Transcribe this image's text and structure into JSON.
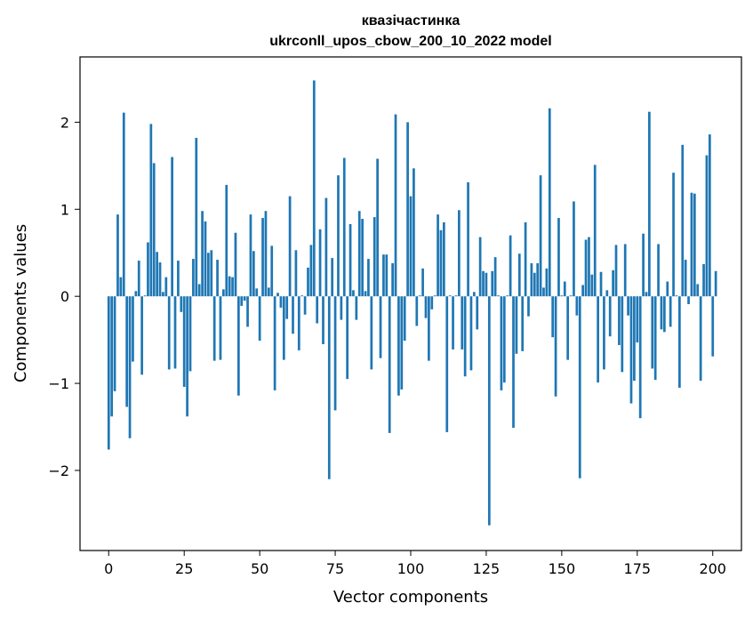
{
  "chart_data": {
    "type": "bar",
    "title": "квазічастинка",
    "subtitle": "ukrconll_upos_cbow_200_10_2022 model",
    "xlabel": "Vector components",
    "ylabel": "Components values",
    "xlim": [
      -9.5,
      209.5
    ],
    "ylim": [
      -2.92,
      2.75
    ],
    "xticks": [
      0,
      25,
      50,
      75,
      100,
      125,
      150,
      175,
      200
    ],
    "yticks": [
      -2,
      -1,
      0,
      1,
      2
    ],
    "ytick_labels": [
      "−2",
      "−1",
      "0",
      "1",
      "2"
    ],
    "grid": false,
    "bar_color": "#1f77b4",
    "values": [
      -1.76,
      -1.38,
      -1.09,
      0.94,
      0.22,
      2.11,
      -1.27,
      -1.63,
      -0.75,
      0.06,
      0.41,
      -0.9,
      0.01,
      0.62,
      1.98,
      1.53,
      0.51,
      0.39,
      0.05,
      0.22,
      -0.84,
      1.6,
      -0.83,
      0.41,
      -0.18,
      -1.04,
      -1.38,
      -0.86,
      0.43,
      1.82,
      0.14,
      0.98,
      0.86,
      0.5,
      0.53,
      -0.74,
      0.42,
      -0.73,
      0.08,
      1.28,
      0.23,
      0.22,
      0.73,
      -1.14,
      -0.11,
      -0.05,
      -0.35,
      0.94,
      0.52,
      0.09,
      -0.51,
      0.9,
      0.98,
      0.1,
      0.58,
      -1.08,
      0.04,
      -0.13,
      -0.73,
      -0.26,
      1.15,
      -0.43,
      0.53,
      -0.62,
      0.01,
      -0.21,
      0.33,
      0.59,
      2.48,
      -0.31,
      0.77,
      -0.55,
      1.13,
      -2.1,
      0.44,
      -1.31,
      1.39,
      -0.27,
      1.59,
      -0.95,
      0.83,
      0.07,
      -0.27,
      0.98,
      0.89,
      0.06,
      0.43,
      -0.84,
      0.91,
      1.58,
      -0.71,
      0.48,
      0.48,
      -1.57,
      0.38,
      2.09,
      -1.14,
      -1.07,
      -0.51,
      2.0,
      1.15,
      1.47,
      -0.34,
      0.01,
      0.32,
      -0.25,
      -0.74,
      -0.15,
      0.01,
      0.94,
      0.76,
      0.85,
      -1.56,
      0.01,
      -0.61,
      0.01,
      0.99,
      -0.61,
      -0.92,
      1.31,
      -0.85,
      0.05,
      -0.38,
      0.68,
      0.29,
      0.27,
      -2.63,
      0.29,
      0.45,
      0.01,
      -1.08,
      -0.99,
      0.01,
      0.7,
      -1.51,
      -0.66,
      0.49,
      -0.63,
      0.85,
      -0.23,
      0.38,
      0.27,
      0.38,
      1.39,
      0.1,
      0.32,
      2.16,
      -0.47,
      -1.15,
      0.9,
      0.01,
      0.17,
      -0.73,
      0.01,
      1.09,
      -0.22,
      -2.09,
      0.13,
      0.65,
      0.68,
      0.25,
      1.51,
      -0.99,
      0.28,
      -0.84,
      0.07,
      -0.46,
      0.3,
      0.59,
      -0.56,
      -0.87,
      0.6,
      -0.22,
      -1.23,
      -0.97,
      -0.53,
      -1.4,
      0.72,
      0.05,
      2.12,
      -0.83,
      -0.96,
      0.6,
      -0.38,
      -0.41,
      0.17,
      -0.35,
      1.42,
      0.01,
      -1.05,
      1.74,
      0.42,
      -0.09,
      1.19,
      1.18,
      0.14,
      -0.97,
      0.37,
      1.62,
      1.86,
      -0.69,
      0.29
    ]
  }
}
